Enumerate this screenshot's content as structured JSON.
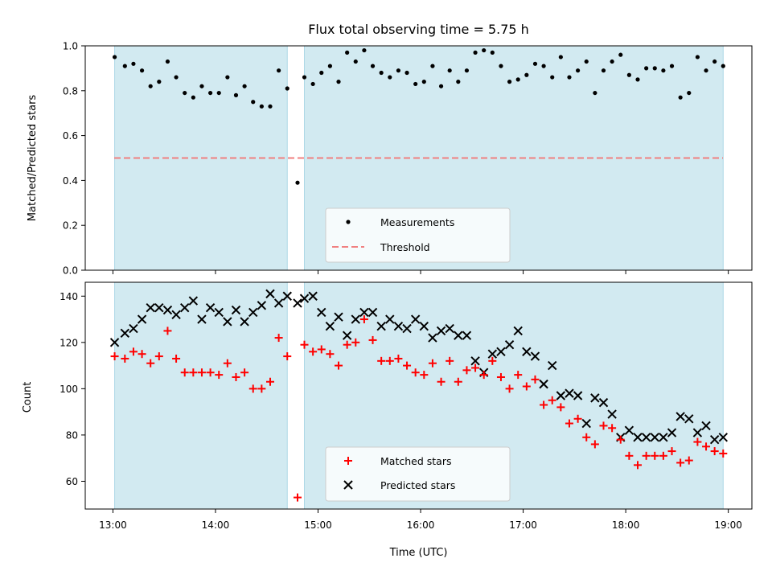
{
  "title": "Flux total observing time = 5.75 h",
  "xlabel": "Time (UTC)",
  "xticks": [
    "13:00",
    "14:00",
    "15:00",
    "16:00",
    "17:00",
    "18:00",
    "19:00"
  ],
  "colors": {
    "shade": "#add8e6",
    "measurement": "#000000",
    "threshold": "#f08080",
    "matched": "#ff0000",
    "predicted": "#000000"
  },
  "chart_data": [
    {
      "type": "scatter",
      "panel": "top",
      "ylabel": "Matched/Predicted stars",
      "ylim": [
        0,
        1.0
      ],
      "yticks": [
        "0.0",
        "0.2",
        "0.4",
        "0.6",
        "0.8",
        "1.0"
      ],
      "xlim_hours": [
        12.73,
        19.23
      ],
      "shaded_intervals": [
        [
          "13:01",
          "14:42"
        ],
        [
          "14:52",
          "18:57"
        ]
      ],
      "threshold": 0.5,
      "legend": {
        "position": "lower center",
        "entries": [
          "Measurements",
          "Threshold"
        ]
      },
      "series": [
        {
          "name": "Measurements",
          "marker": "dot",
          "x": [
            "13:01",
            "13:07",
            "13:12",
            "13:17",
            "13:22",
            "13:27",
            "13:32",
            "13:37",
            "13:42",
            "13:47",
            "13:52",
            "13:57",
            "14:02",
            "14:07",
            "14:12",
            "14:17",
            "14:22",
            "14:27",
            "14:32",
            "14:37",
            "14:42",
            "14:48",
            "14:52",
            "14:57",
            "15:02",
            "15:07",
            "15:12",
            "15:17",
            "15:22",
            "15:27",
            "15:32",
            "15:37",
            "15:42",
            "15:47",
            "15:52",
            "15:57",
            "16:02",
            "16:07",
            "16:12",
            "16:17",
            "16:22",
            "16:27",
            "16:32",
            "16:37",
            "16:42",
            "16:47",
            "16:52",
            "16:57",
            "17:02",
            "17:07",
            "17:12",
            "17:17",
            "17:22",
            "17:27",
            "17:32",
            "17:37",
            "17:42",
            "17:47",
            "17:52",
            "17:57",
            "18:02",
            "18:07",
            "18:12",
            "18:17",
            "18:22",
            "18:27",
            "18:32",
            "18:37",
            "18:42",
            "18:47",
            "18:52",
            "18:57"
          ],
          "y": [
            0.95,
            0.91,
            0.92,
            0.89,
            0.82,
            0.84,
            0.93,
            0.86,
            0.79,
            0.77,
            0.82,
            0.79,
            0.79,
            0.86,
            0.78,
            0.82,
            0.75,
            0.73,
            0.73,
            0.89,
            0.81,
            0.39,
            0.86,
            0.83,
            0.88,
            0.91,
            0.84,
            0.97,
            0.93,
            0.98,
            0.91,
            0.88,
            0.86,
            0.89,
            0.88,
            0.83,
            0.84,
            0.91,
            0.82,
            0.89,
            0.84,
            0.89,
            0.97,
            0.98,
            0.97,
            0.91,
            0.84,
            0.85,
            0.87,
            0.92,
            0.91,
            0.86,
            0.95,
            0.86,
            0.89,
            0.93,
            0.79,
            0.89,
            0.93,
            0.96,
            0.87,
            0.85,
            0.9,
            0.9,
            0.89,
            0.91,
            0.77,
            0.79,
            0.95,
            0.89,
            0.93,
            0.91
          ]
        }
      ]
    },
    {
      "type": "scatter",
      "panel": "bottom",
      "ylabel": "Count",
      "ylim": [
        48,
        146
      ],
      "yticks": [
        "60",
        "80",
        "100",
        "120",
        "140"
      ],
      "xlim_hours": [
        12.73,
        19.23
      ],
      "shaded_intervals": [
        [
          "13:01",
          "14:42"
        ],
        [
          "14:52",
          "18:57"
        ]
      ],
      "legend": {
        "position": "lower center",
        "entries": [
          "Matched stars",
          "Predicted stars"
        ]
      },
      "x": [
        "13:01",
        "13:07",
        "13:12",
        "13:17",
        "13:22",
        "13:27",
        "13:32",
        "13:37",
        "13:42",
        "13:47",
        "13:52",
        "13:57",
        "14:02",
        "14:07",
        "14:12",
        "14:17",
        "14:22",
        "14:27",
        "14:32",
        "14:37",
        "14:42",
        "14:48",
        "14:52",
        "14:57",
        "15:02",
        "15:07",
        "15:12",
        "15:17",
        "15:22",
        "15:27",
        "15:32",
        "15:37",
        "15:42",
        "15:47",
        "15:52",
        "15:57",
        "16:02",
        "16:07",
        "16:12",
        "16:17",
        "16:22",
        "16:27",
        "16:32",
        "16:37",
        "16:42",
        "16:47",
        "16:52",
        "16:57",
        "17:02",
        "17:07",
        "17:12",
        "17:17",
        "17:22",
        "17:27",
        "17:32",
        "17:37",
        "17:42",
        "17:47",
        "17:52",
        "17:57",
        "18:02",
        "18:07",
        "18:12",
        "18:17",
        "18:22",
        "18:27",
        "18:32",
        "18:37",
        "18:42",
        "18:47",
        "18:52",
        "18:57"
      ],
      "series": [
        {
          "name": "Matched stars",
          "marker": "plus",
          "values": [
            114,
            113,
            116,
            115,
            111,
            114,
            125,
            113,
            107,
            107,
            107,
            107,
            106,
            111,
            105,
            107,
            100,
            100,
            103,
            122,
            114,
            53,
            119,
            116,
            117,
            115,
            110,
            119,
            120,
            130,
            121,
            112,
            112,
            113,
            110,
            107,
            106,
            111,
            103,
            112,
            103,
            108,
            109,
            106,
            112,
            105,
            100,
            106,
            101,
            104,
            93,
            95,
            92,
            85,
            87,
            79,
            76,
            84,
            83,
            78,
            71,
            67,
            71,
            71,
            71,
            73,
            68,
            69,
            77,
            75,
            73,
            72
          ]
        },
        {
          "name": "Predicted stars",
          "marker": "x",
          "values": [
            120,
            124,
            126,
            130,
            135,
            135,
            134,
            132,
            135,
            138,
            130,
            135,
            133,
            129,
            134,
            129,
            133,
            136,
            141,
            137,
            140,
            137,
            139,
            140,
            133,
            127,
            131,
            123,
            130,
            133,
            133,
            127,
            130,
            127,
            126,
            130,
            127,
            122,
            125,
            126,
            123,
            123,
            112,
            107,
            115,
            116,
            119,
            125,
            116,
            114,
            102,
            110,
            97,
            98,
            97,
            85,
            96,
            94,
            89,
            79,
            82,
            79,
            79,
            79,
            79,
            81,
            88,
            87,
            81,
            84,
            78,
            79
          ]
        }
      ]
    }
  ]
}
